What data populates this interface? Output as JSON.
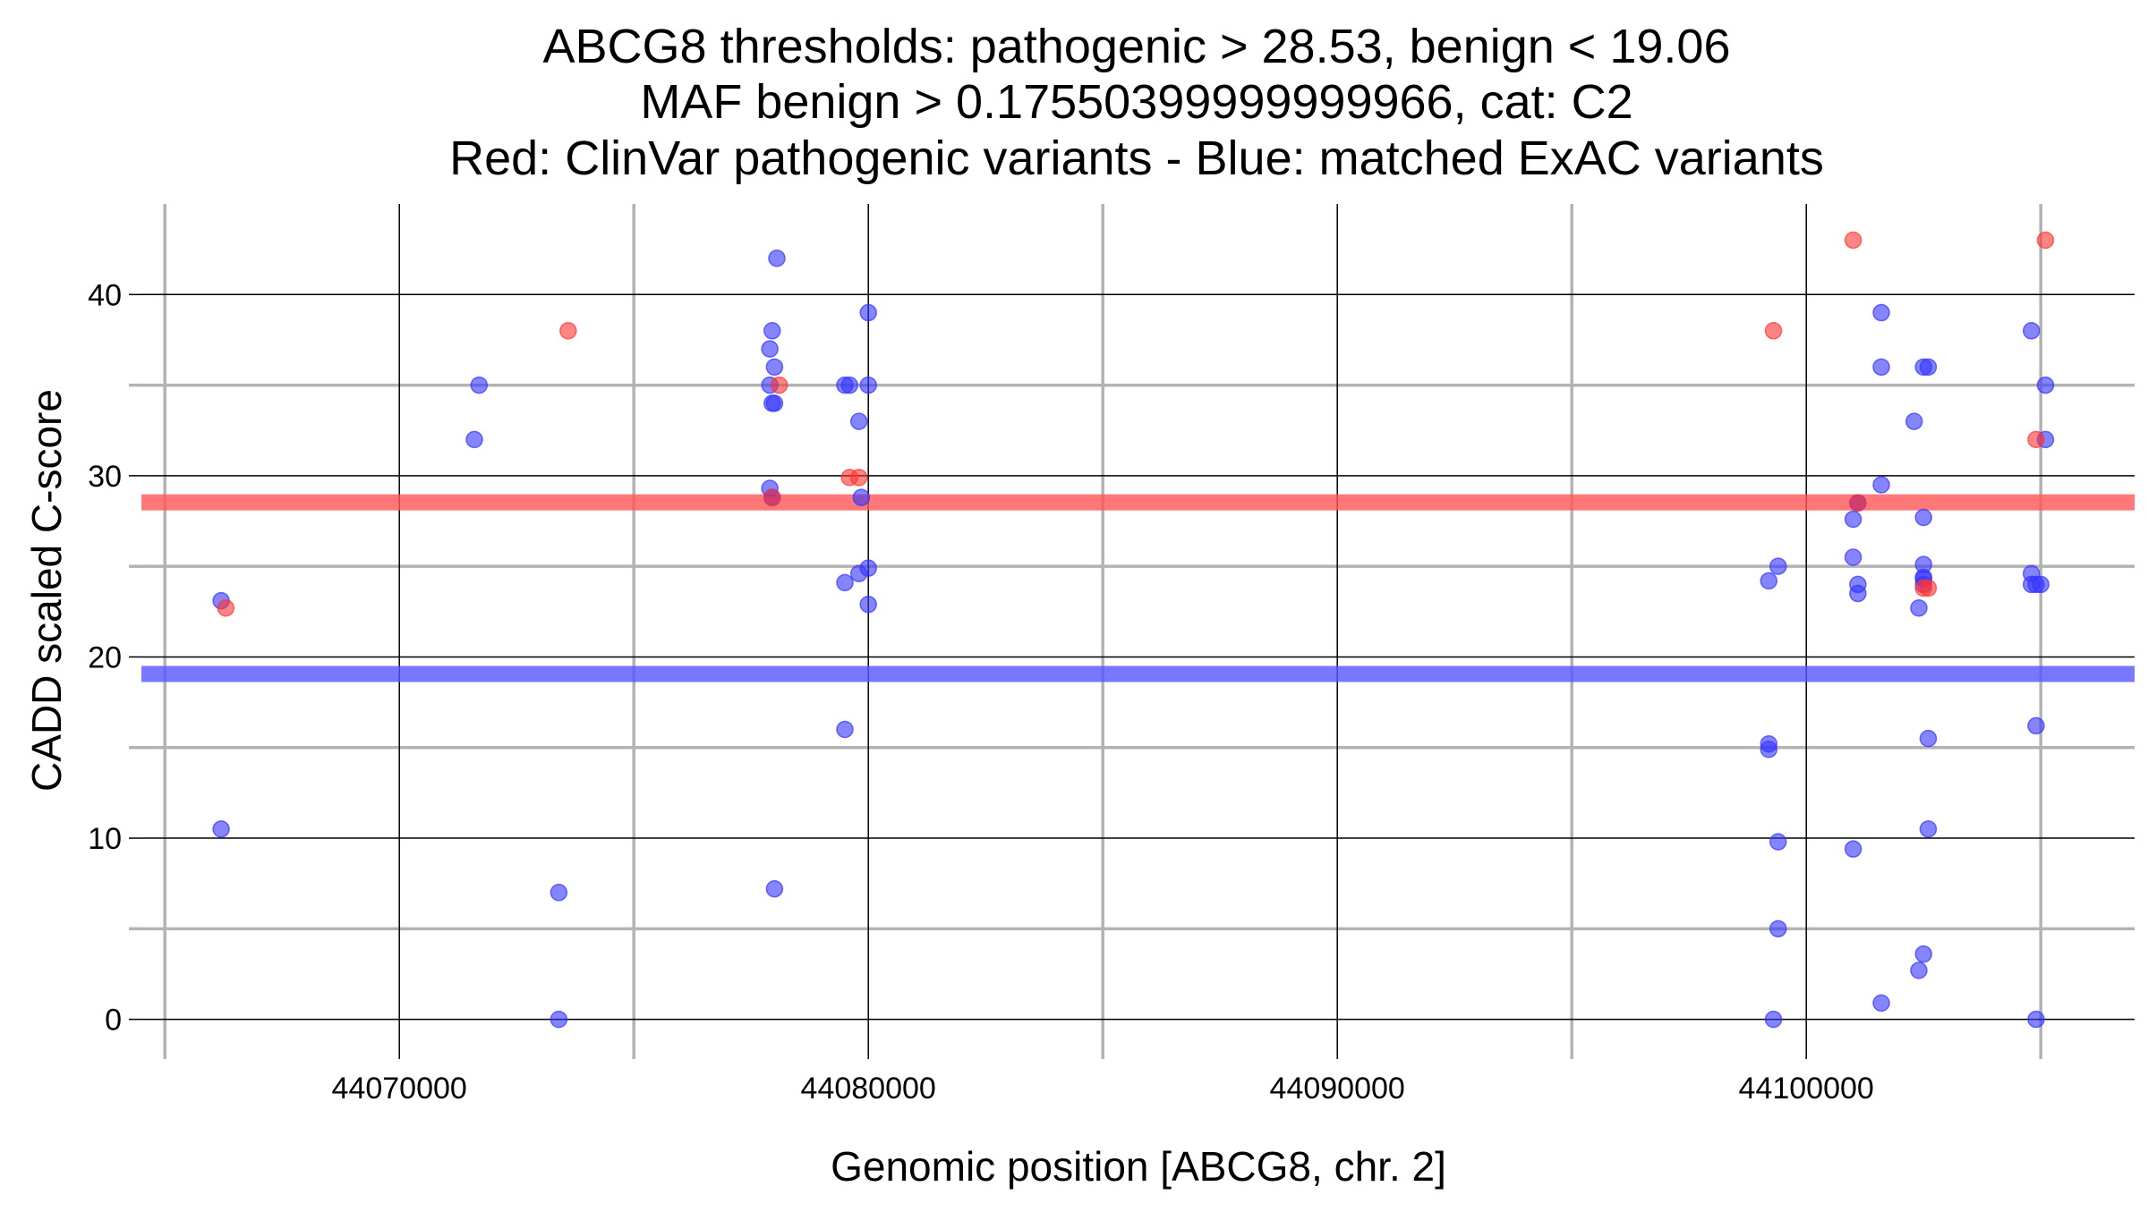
{
  "chart_data": {
    "type": "scatter",
    "title_lines": [
      "ABCG8 thresholds: pathogenic > 28.53, benign < 19.06",
      "MAF benign > 0.17550399999999966, cat: C2",
      "Red: ClinVar pathogenic variants - Blue: matched ExAC variants"
    ],
    "xlabel": "Genomic position [ABCG8, chr. 2]",
    "ylabel": "CADD scaled C-score",
    "xlim": [
      44064500,
      44107000
    ],
    "ylim": [
      -1.5,
      45
    ],
    "x_ticks": [
      44070000,
      44080000,
      44090000,
      44100000
    ],
    "x_tick_labels": [
      "44070000",
      "44080000",
      "44090000",
      "44100000"
    ],
    "x_minor_ticks": [
      44065000,
      44075000,
      44085000,
      44095000,
      44105000
    ],
    "y_ticks": [
      0,
      10,
      20,
      30,
      40
    ],
    "y_tick_labels": [
      "0",
      "10",
      "20",
      "30",
      "40"
    ],
    "y_minor_ticks": [
      5,
      15,
      25,
      35
    ],
    "grid": true,
    "thresholds": [
      {
        "value": 28.53,
        "color": "#ff5555"
      },
      {
        "value": 19.06,
        "color": "#5555ff"
      }
    ],
    "series": [
      {
        "color": "#3333ff",
        "points": [
          [
            44066200,
            23.1
          ],
          [
            44066200,
            10.5
          ],
          [
            44071700,
            35
          ],
          [
            44071600,
            32
          ],
          [
            44073400,
            7
          ],
          [
            44073400,
            0
          ],
          [
            44077900,
            29.3
          ],
          [
            44077900,
            37
          ],
          [
            44077950,
            38
          ],
          [
            44078000,
            36
          ],
          [
            44077900,
            35
          ],
          [
            44077950,
            34
          ],
          [
            44078000,
            34
          ],
          [
            44078050,
            42
          ],
          [
            44077950,
            28.8
          ],
          [
            44078000,
            7.2
          ],
          [
            44079500,
            35
          ],
          [
            44079600,
            35
          ],
          [
            44079500,
            24.1
          ],
          [
            44079500,
            16
          ],
          [
            44079800,
            33
          ],
          [
            44079800,
            24.6
          ],
          [
            44079850,
            28.8
          ],
          [
            44080000,
            39
          ],
          [
            44080000,
            35
          ],
          [
            44080000,
            24.9
          ],
          [
            44080000,
            22.9
          ],
          [
            44099200,
            24.2
          ],
          [
            44099200,
            15.2
          ],
          [
            44099200,
            14.9
          ],
          [
            44099300,
            0
          ],
          [
            44099400,
            25
          ],
          [
            44099400,
            9.8
          ],
          [
            44099400,
            5
          ],
          [
            44101000,
            27.6
          ],
          [
            44101000,
            25.5
          ],
          [
            44101000,
            9.4
          ],
          [
            44101100,
            28.5
          ],
          [
            44101100,
            24
          ],
          [
            44101100,
            23.5
          ],
          [
            44101600,
            39
          ],
          [
            44101600,
            36
          ],
          [
            44101600,
            29.5
          ],
          [
            44101600,
            0.9
          ],
          [
            44102300,
            33
          ],
          [
            44102400,
            22.7
          ],
          [
            44102400,
            2.7
          ],
          [
            44102500,
            36
          ],
          [
            44102600,
            36
          ],
          [
            44102500,
            27.7
          ],
          [
            44102500,
            25.1
          ],
          [
            44102500,
            24.4
          ],
          [
            44102500,
            24.3
          ],
          [
            44102500,
            24
          ],
          [
            44102600,
            15.5
          ],
          [
            44102600,
            10.5
          ],
          [
            44102500,
            3.6
          ],
          [
            44104800,
            38
          ],
          [
            44104800,
            24.6
          ],
          [
            44104800,
            24
          ],
          [
            44104900,
            24
          ],
          [
            44105000,
            24
          ],
          [
            44104900,
            16.2
          ],
          [
            44104900,
            0
          ],
          [
            44105100,
            35
          ],
          [
            44105100,
            32
          ]
        ]
      },
      {
        "color": "#ff3333",
        "points": [
          [
            44066300,
            22.7
          ],
          [
            44073600,
            38
          ],
          [
            44078100,
            35
          ],
          [
            44077950,
            28.8
          ],
          [
            44079600,
            29.9
          ],
          [
            44079800,
            29.9
          ],
          [
            44099300,
            38
          ],
          [
            44101000,
            43
          ],
          [
            44101100,
            28.5
          ],
          [
            44102500,
            23.8
          ],
          [
            44102600,
            23.8
          ],
          [
            44104900,
            32
          ],
          [
            44105100,
            43
          ]
        ]
      }
    ]
  }
}
